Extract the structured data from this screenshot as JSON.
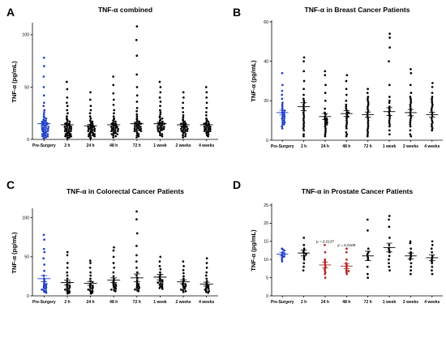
{
  "chart_data": [
    {
      "panel": "A",
      "type": "scatter",
      "title": "TNF-α combined",
      "ylabel": "TNF-α (pg/mL)",
      "ylim": [
        0,
        110
      ],
      "yticks": [
        0,
        50,
        100
      ],
      "categories": [
        "Pre-Surgery",
        "2 h",
        "24 h",
        "48 h",
        "72 h",
        "1 week",
        "2 weeks",
        "4 weeks"
      ],
      "colors": [
        "#1f3fc8",
        "#000000",
        "#000000",
        "#000000",
        "#000000",
        "#000000",
        "#000000",
        "#000000"
      ],
      "means": [
        15,
        14,
        13,
        14,
        15,
        15,
        14,
        14
      ],
      "sems": [
        1.5,
        1.3,
        1.2,
        1.3,
        1.5,
        1.4,
        1.3,
        1.2
      ],
      "groups": [
        [
          78,
          70,
          60,
          50,
          42,
          35,
          32,
          28,
          26,
          24,
          22,
          21,
          20,
          19,
          18,
          18,
          17,
          16,
          16,
          15,
          15,
          14,
          14,
          13,
          13,
          12,
          12,
          11,
          11,
          10,
          10,
          9,
          9,
          8,
          8,
          7,
          7,
          6,
          6,
          5,
          5,
          4,
          4,
          3,
          3,
          2,
          2,
          1
        ],
        [
          55,
          48,
          40,
          35,
          32,
          28,
          25,
          22,
          20,
          19,
          18,
          17,
          16,
          15,
          15,
          14,
          14,
          13,
          13,
          12,
          12,
          11,
          11,
          10,
          10,
          9,
          9,
          8,
          8,
          7,
          7,
          6,
          6,
          5,
          5,
          4,
          4,
          3,
          3,
          2,
          2,
          1
        ],
        [
          45,
          38,
          32,
          28,
          25,
          22,
          20,
          18,
          17,
          16,
          15,
          14,
          14,
          13,
          13,
          12,
          12,
          11,
          11,
          10,
          10,
          9,
          9,
          8,
          8,
          7,
          7,
          6,
          6,
          5,
          5,
          4,
          4,
          3,
          3,
          2,
          1
        ],
        [
          60,
          52,
          44,
          38,
          33,
          28,
          25,
          22,
          20,
          19,
          18,
          17,
          16,
          15,
          15,
          14,
          14,
          13,
          13,
          12,
          12,
          11,
          11,
          10,
          10,
          9,
          9,
          8,
          8,
          7,
          7,
          6,
          6,
          5,
          5,
          4,
          3,
          2
        ],
        [
          108,
          95,
          80,
          62,
          50,
          42,
          36,
          30,
          27,
          24,
          22,
          20,
          19,
          18,
          17,
          16,
          16,
          15,
          15,
          14,
          14,
          13,
          13,
          12,
          12,
          11,
          11,
          10,
          10,
          9,
          9,
          8,
          8,
          7,
          6,
          5,
          4,
          3,
          2
        ],
        [
          55,
          50,
          45,
          40,
          36,
          32,
          28,
          26,
          24,
          22,
          21,
          20,
          19,
          18,
          17,
          16,
          16,
          15,
          15,
          14,
          14,
          13,
          13,
          12,
          12,
          11,
          11,
          10,
          10,
          9,
          9,
          8,
          7,
          6,
          5,
          4,
          3
        ],
        [
          45,
          40,
          35,
          30,
          26,
          23,
          21,
          19,
          18,
          17,
          16,
          15,
          15,
          14,
          14,
          13,
          13,
          12,
          12,
          11,
          11,
          10,
          10,
          9,
          9,
          8,
          8,
          7,
          7,
          6,
          5,
          4,
          3,
          2
        ],
        [
          50,
          45,
          40,
          35,
          30,
          26,
          23,
          20,
          19,
          18,
          17,
          16,
          15,
          15,
          14,
          14,
          13,
          13,
          12,
          12,
          11,
          11,
          10,
          10,
          9,
          9,
          8,
          8,
          7,
          7,
          6,
          5,
          4,
          3
        ]
      ],
      "annotations": []
    },
    {
      "panel": "B",
      "type": "scatter",
      "title": "TNF-α in Breast Cancer Patients",
      "ylabel": "TNF-α (pg/mL)",
      "ylim": [
        0,
        60
      ],
      "yticks": [
        0,
        20,
        40,
        60
      ],
      "categories": [
        "Pre-Surgery",
        "2 h",
        "24 h",
        "48 h",
        "72 h",
        "1 week",
        "2 weeks",
        "4 weeks"
      ],
      "colors": [
        "#1f3fc8",
        "#000000",
        "#000000",
        "#000000",
        "#000000",
        "#000000",
        "#000000",
        "#000000"
      ],
      "means": [
        14,
        17,
        12,
        13.5,
        13,
        14.5,
        14,
        13
      ],
      "sems": [
        1.2,
        2,
        1.5,
        1.5,
        1.3,
        2,
        1.6,
        1.2
      ],
      "groups": [
        [
          34,
          28,
          25,
          23,
          21,
          19,
          18,
          17,
          16,
          15,
          15,
          14,
          14,
          13,
          13,
          12,
          12,
          11,
          11,
          10,
          10,
          9,
          9,
          8,
          8,
          7,
          6
        ],
        [
          42,
          40,
          35,
          30,
          26,
          23,
          21,
          20,
          19,
          18,
          17,
          16,
          15,
          14,
          13,
          12,
          11,
          10,
          9,
          8,
          7,
          6,
          5,
          3,
          2
        ],
        [
          35,
          33,
          28,
          24,
          20,
          16,
          14,
          13,
          12,
          11,
          11,
          10,
          10,
          9,
          9,
          8,
          8,
          7,
          6,
          5,
          4,
          3,
          2
        ],
        [
          33,
          30,
          26,
          23,
          20,
          18,
          17,
          16,
          15,
          14,
          14,
          13,
          12,
          12,
          11,
          10,
          9,
          8,
          7,
          6,
          4,
          3,
          2
        ],
        [
          26,
          24,
          22,
          21,
          20,
          19,
          18,
          17,
          16,
          15,
          14,
          13,
          12,
          11,
          10,
          9,
          8,
          7,
          6,
          5,
          4,
          3,
          2
        ],
        [
          54,
          52,
          47,
          40,
          28,
          22,
          20,
          19,
          17,
          16,
          15,
          14,
          13,
          12,
          11,
          10,
          9,
          8,
          7,
          5,
          3
        ],
        [
          36,
          34,
          28,
          24,
          22,
          21,
          20,
          19,
          18,
          17,
          16,
          15,
          14,
          13,
          12,
          11,
          10,
          9,
          8,
          7,
          5,
          3,
          2
        ],
        [
          29,
          27,
          24,
          22,
          21,
          20,
          19,
          18,
          17,
          16,
          15,
          14,
          13,
          12,
          11,
          10,
          9,
          8,
          7,
          6,
          5
        ]
      ],
      "annotations": []
    },
    {
      "panel": "C",
      "type": "scatter",
      "title": "TNF-α in Colorectal Cancer Patients",
      "ylabel": "TNF-α (pg/mL)",
      "ylim": [
        0,
        110
      ],
      "yticks": [
        0,
        50,
        100
      ],
      "categories": [
        "Pre-Surgery",
        "2 h",
        "24 h",
        "48 h",
        "72 h",
        "1 week",
        "2 weeks",
        "4 weeks"
      ],
      "colors": [
        "#1f3fc8",
        "#000000",
        "#000000",
        "#000000",
        "#000000",
        "#000000",
        "#000000",
        "#000000"
      ],
      "means": [
        22,
        17,
        16,
        20,
        23,
        24,
        18,
        15
      ],
      "sems": [
        4,
        3,
        2.5,
        3,
        5,
        3.5,
        2.5,
        2.5
      ],
      "groups": [
        [
          78,
          72,
          60,
          56,
          48,
          40,
          32,
          26,
          22,
          20,
          18,
          16,
          15,
          14,
          13,
          12,
          11,
          10,
          9,
          8,
          7,
          6,
          5,
          4
        ],
        [
          56,
          52,
          42,
          36,
          30,
          26,
          22,
          19,
          17,
          15,
          14,
          13,
          12,
          11,
          10,
          9,
          8,
          7,
          6,
          5,
          4,
          3
        ],
        [
          45,
          42,
          36,
          30,
          26,
          22,
          19,
          17,
          15,
          14,
          13,
          12,
          11,
          10,
          9,
          8,
          7,
          6,
          5,
          4,
          3
        ],
        [
          62,
          58,
          50,
          42,
          36,
          30,
          25,
          22,
          20,
          18,
          16,
          15,
          14,
          13,
          12,
          11,
          10,
          9,
          8,
          7,
          6
        ],
        [
          108,
          98,
          80,
          64,
          52,
          44,
          36,
          30,
          26,
          23,
          20,
          18,
          16,
          15,
          14,
          13,
          12,
          11,
          10,
          9,
          8,
          7,
          6
        ],
        [
          50,
          44,
          38,
          34,
          30,
          27,
          25,
          23,
          21,
          20,
          19,
          18,
          17,
          16,
          15,
          14,
          13,
          12,
          11,
          10,
          9
        ],
        [
          44,
          38,
          33,
          29,
          25,
          22,
          20,
          18,
          16,
          15,
          14,
          13,
          12,
          11,
          10,
          9,
          8,
          7,
          6,
          5
        ],
        [
          48,
          42,
          36,
          30,
          26,
          22,
          19,
          16,
          14,
          13,
          12,
          11,
          10,
          9,
          8,
          7,
          6,
          5,
          4
        ]
      ],
      "annotations": []
    },
    {
      "panel": "D",
      "type": "scatter",
      "title": "TNF-α in Prostate Cancer Patients",
      "ylabel": "TNF-α (pg/mL)",
      "ylim": [
        0,
        25
      ],
      "yticks": [
        0,
        5,
        10,
        15,
        20,
        25
      ],
      "categories": [
        "Pre-Surgery",
        "2 h",
        "24 h",
        "48 h",
        "72 h",
        "1 week",
        "2 weeks",
        "4 weeks"
      ],
      "colors": [
        "#1f3fc8",
        "#000000",
        "#b22222",
        "#b22222",
        "#000000",
        "#000000",
        "#000000",
        "#000000"
      ],
      "means": [
        11.5,
        11.8,
        8.5,
        8.2,
        11,
        13.3,
        11,
        10.5
      ],
      "sems": [
        0.5,
        0.8,
        0.8,
        0.7,
        1.3,
        1.2,
        0.8,
        0.8
      ],
      "groups": [
        [
          13,
          12.8,
          12.5,
          12,
          11.8,
          11.5,
          11.2,
          11,
          10.8,
          10.5,
          10,
          9.5
        ],
        [
          16,
          14,
          13,
          12.5,
          12,
          11.8,
          11.5,
          11,
          10.5,
          10,
          9,
          8,
          7
        ],
        [
          14,
          12,
          10,
          9.5,
          9,
          8.5,
          8,
          7.5,
          7,
          6.5,
          6,
          5
        ],
        [
          13,
          12,
          10,
          9,
          8.5,
          8,
          7.5,
          7,
          6.8,
          6.5,
          6
        ],
        [
          21,
          18,
          13,
          12,
          11.5,
          11,
          10.5,
          10,
          8,
          6,
          5
        ],
        [
          22,
          21,
          19,
          16,
          14,
          13,
          12.5,
          12,
          11,
          10,
          9,
          8,
          7
        ],
        [
          15,
          14.5,
          13,
          12,
          11.5,
          11,
          10.5,
          10,
          9,
          8,
          7,
          6
        ],
        [
          15,
          14,
          13,
          12,
          11,
          10.5,
          10,
          9.5,
          9,
          8,
          7,
          6
        ]
      ],
      "annotations": [
        {
          "category": "24 h",
          "text": "p = 0.0137"
        },
        {
          "category": "48 h",
          "text": "p = 0.0109"
        }
      ]
    }
  ]
}
